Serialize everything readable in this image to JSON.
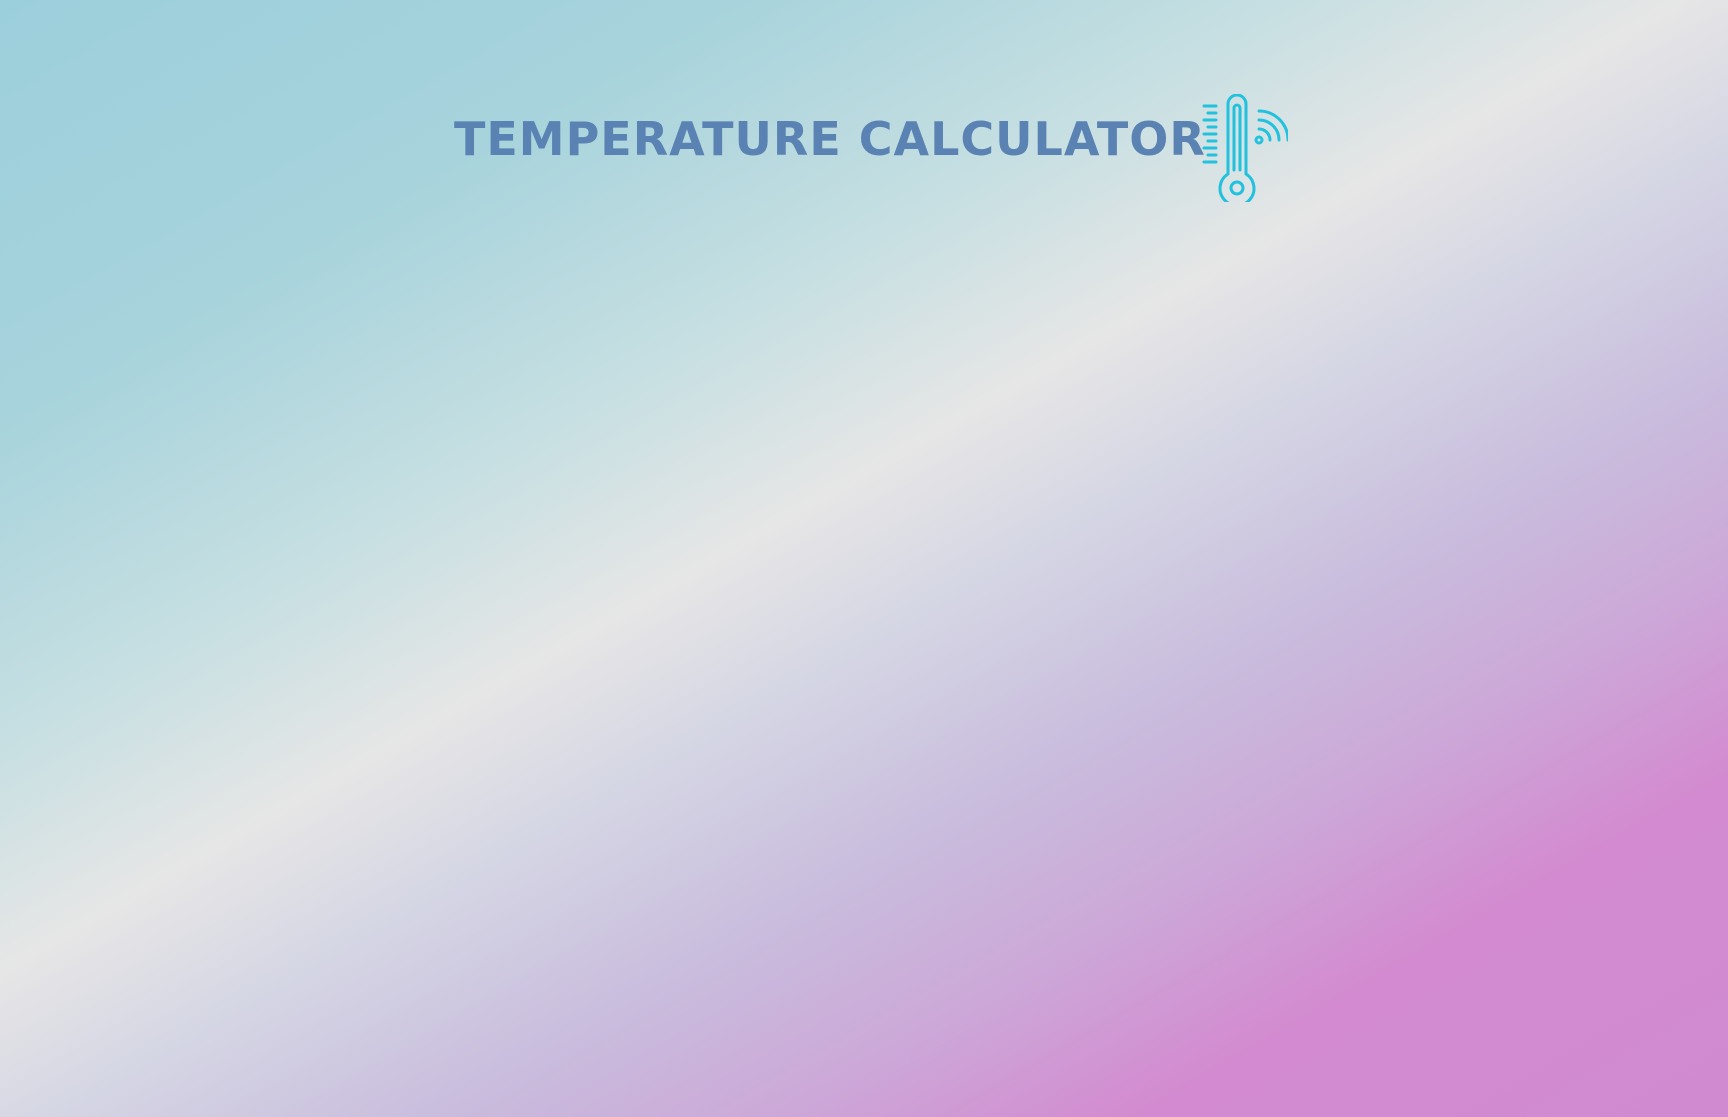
{
  "header": {
    "title": "TEMPERATURE CALCULATOR",
    "icon": "smart-thermometer-icon"
  },
  "colors": {
    "title": "#5a83b3",
    "icon": "#22c1dd",
    "background_start": "#9ccfdc",
    "background_mid": "#e6e6e6",
    "background_end": "#d08bd0"
  }
}
